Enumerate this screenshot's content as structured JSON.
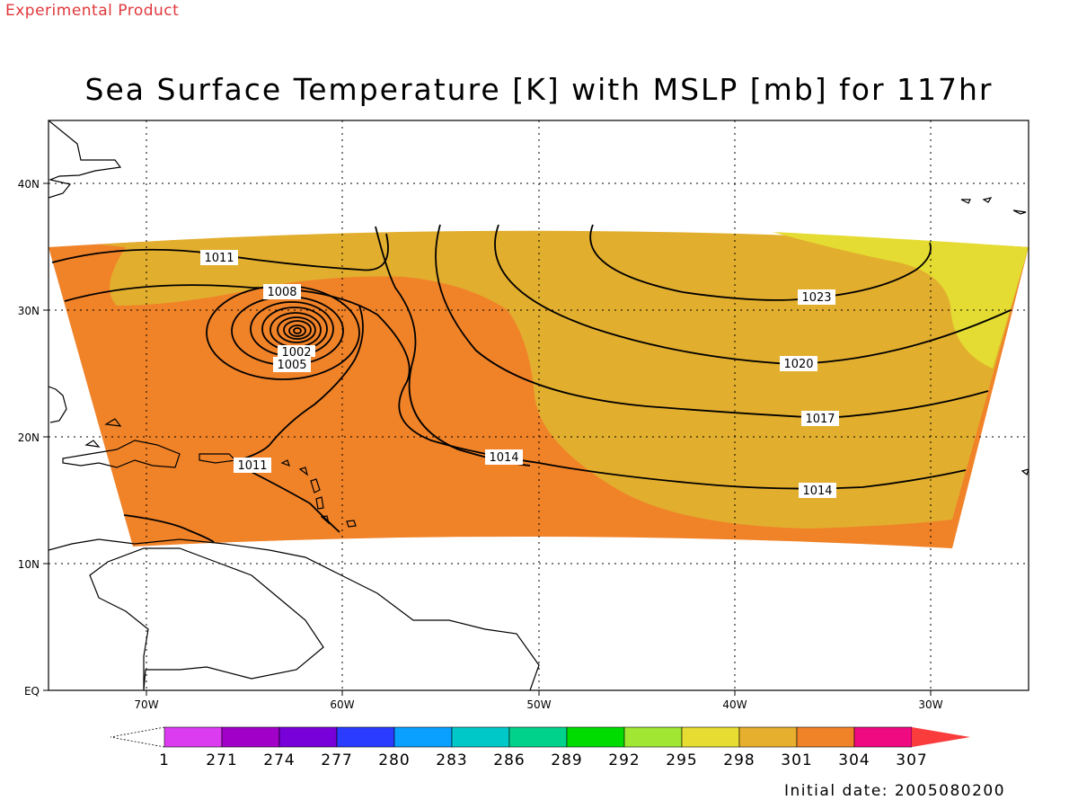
{
  "header": {
    "tag": "Experimental Product",
    "title": "Sea Surface Temperature [K] with MSLP [mb] for 117hr"
  },
  "map": {
    "lon_range": [
      -75,
      -25
    ],
    "lat_range": [
      0,
      45
    ],
    "lon_ticks": [
      "70W",
      "60W",
      "50W",
      "40W",
      "30W"
    ],
    "lat_ticks": [
      "EQ",
      "10N",
      "20N",
      "30N",
      "40N"
    ],
    "grid": "dotted",
    "colors": {
      "sst_298_301": "#e2ae2e",
      "sst_301_304": "#f08228",
      "sst_295_298": "#e4dc32"
    },
    "isobar_labels": [
      "1011",
      "1008",
      "1005",
      "1002",
      "1023",
      "1020",
      "1017",
      "1014",
      "1014",
      "1011"
    ]
  },
  "colorbar": {
    "colors": [
      "#dc3cf0",
      "#a000c8",
      "#7800d8",
      "#2a3cff",
      "#0aa0ff",
      "#00c8c8",
      "#00d28c",
      "#00dc00",
      "#a0e632",
      "#e6dc32",
      "#e6af2d",
      "#f08228",
      "#f00a82",
      "#fa3c3c"
    ],
    "labels": [
      "1",
      "271",
      "274",
      "277",
      "280",
      "283",
      "286",
      "289",
      "292",
      "295",
      "298",
      "301",
      "304",
      "307"
    ]
  },
  "footer": {
    "initial_date": "Initial date: 2005080200"
  }
}
